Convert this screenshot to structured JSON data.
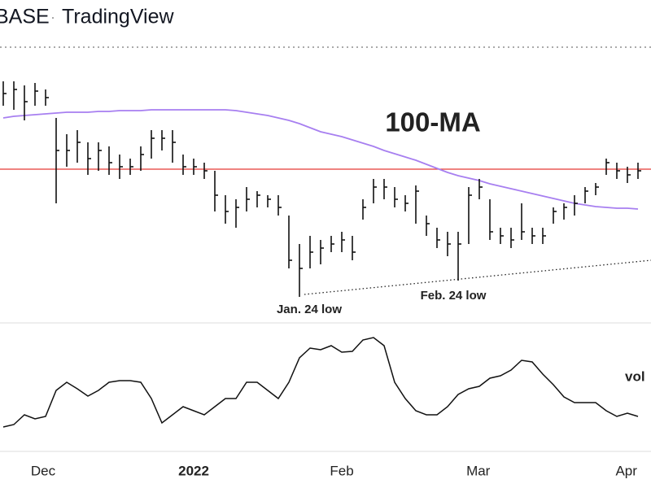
{
  "header": {
    "symbol": "BASE",
    "separator": "·",
    "source": "TradingView"
  },
  "chart_data": [
    {
      "type": "hlc",
      "ylim": [
        0,
        340
      ],
      "high": [
        295,
        295,
        290,
        293,
        285,
        250,
        230,
        235,
        220,
        220,
        215,
        205,
        200,
        215,
        235,
        235,
        235,
        205,
        200,
        195,
        185,
        155,
        150,
        165,
        160,
        155,
        155,
        130,
        95,
        105,
        100,
        105,
        110,
        105,
        150,
        175,
        175,
        165,
        155,
        167,
        130,
        115,
        110,
        110,
        165,
        175,
        150,
        115,
        115,
        145,
        115,
        115,
        140,
        145,
        155,
        165,
        170,
        200,
        195,
        190,
        195
      ],
      "low": [
        265,
        260,
        247,
        265,
        265,
        145,
        190,
        195,
        180,
        185,
        180,
        175,
        180,
        185,
        200,
        210,
        195,
        180,
        180,
        175,
        135,
        120,
        115,
        135,
        140,
        140,
        130,
        65,
        30,
        65,
        70,
        85,
        85,
        75,
        125,
        145,
        150,
        140,
        135,
        120,
        105,
        90,
        80,
        50,
        95,
        150,
        100,
        95,
        90,
        100,
        95,
        95,
        120,
        125,
        130,
        145,
        155,
        180,
        175,
        170,
        175
      ],
      "close": [
        280,
        285,
        270,
        283,
        275,
        210,
        210,
        220,
        200,
        210,
        195,
        190,
        190,
        205,
        225,
        225,
        220,
        190,
        190,
        185,
        155,
        135,
        140,
        150,
        155,
        150,
        140,
        75,
        65,
        85,
        90,
        95,
        100,
        85,
        140,
        165,
        165,
        150,
        145,
        160,
        120,
        100,
        95,
        95,
        155,
        165,
        110,
        105,
        100,
        110,
        105,
        105,
        135,
        140,
        145,
        160,
        165,
        195,
        185,
        180,
        185
      ],
      "bar_color": "#111111",
      "ma": {
        "color": "#a77ff0",
        "values": [
          250,
          252,
          253,
          254,
          255,
          256,
          257,
          257,
          257,
          258,
          258,
          259,
          259,
          259,
          260,
          260,
          260,
          260,
          260,
          260,
          260,
          260,
          259,
          257,
          255,
          253,
          250,
          247,
          243,
          238,
          233,
          230,
          227,
          223,
          219,
          215,
          210,
          206,
          202,
          198,
          193,
          188,
          183,
          179,
          176,
          173,
          169,
          166,
          163,
          160,
          157,
          154,
          151,
          148,
          145,
          143,
          141,
          140,
          139,
          139,
          138
        ]
      },
      "reference_line": {
        "value": 187,
        "color": "#e53935"
      },
      "trendline": {
        "values": [
          33,
          75
        ]
      },
      "annotations": {
        "ma_label": "100-MA",
        "low1": "Jan. 24 low",
        "low2": "Feb. 24 low"
      }
    },
    {
      "type": "line",
      "ylim": [
        0,
        155
      ],
      "color": "#111111",
      "values": [
        30,
        33,
        45,
        40,
        43,
        75,
        85,
        77,
        68,
        75,
        85,
        87,
        87,
        85,
        65,
        35,
        45,
        55,
        50,
        45,
        55,
        65,
        65,
        85,
        85,
        75,
        65,
        85,
        115,
        127,
        125,
        130,
        122,
        123,
        137,
        140,
        130,
        85,
        65,
        50,
        45,
        45,
        55,
        70,
        77,
        80,
        90,
        93,
        100,
        112,
        110,
        95,
        82,
        67,
        60,
        60,
        60,
        50,
        43,
        47,
        43
      ],
      "annotation": "vol",
      "xlim": [
        -0.31,
        61.23
      ],
      "xticks": [
        {
          "value": 3.77,
          "label": "Dec"
        },
        {
          "value": 18.0,
          "label": "2022"
        },
        {
          "value": 32.0,
          "label": "Feb"
        },
        {
          "value": 44.9,
          "label": "Mar"
        },
        {
          "value": 58.9,
          "label": "Apr"
        }
      ]
    }
  ]
}
